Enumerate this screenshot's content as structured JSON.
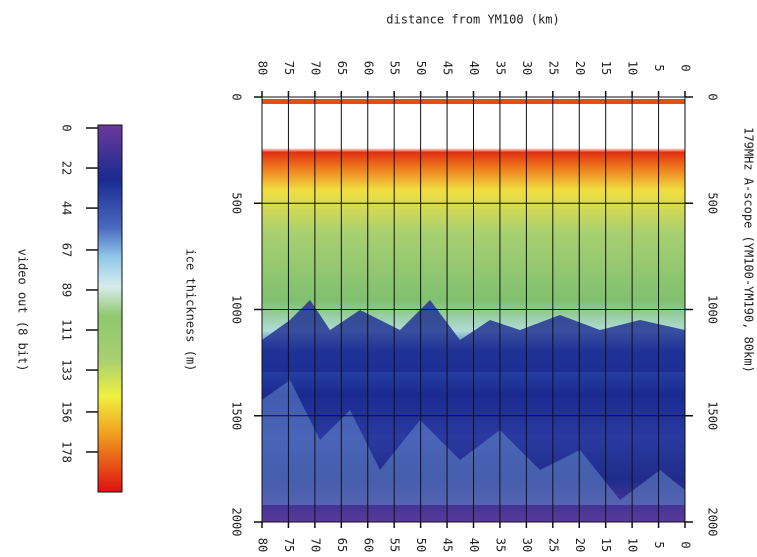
{
  "chart_data": {
    "type": "radargram",
    "title": "179MHz A-scope (YM100-YM190, 80km)",
    "x_label": "distance from YM100 (km)",
    "y_label": "ice thickness (m)",
    "xlim": [
      80,
      0
    ],
    "xticks": [
      80,
      75,
      70,
      65,
      60,
      55,
      50,
      45,
      40,
      35,
      30,
      25,
      20,
      15,
      10,
      5,
      0
    ],
    "ylim": [
      0,
      2000
    ],
    "yticks": [
      0,
      500,
      1000,
      1500,
      2000
    ],
    "grid": true,
    "colorbar": {
      "label": "video out (8 bit)",
      "lim": [
        0,
        200
      ],
      "ticks": [
        0,
        22,
        44,
        67,
        89,
        111,
        133,
        156,
        178
      ]
    }
  }
}
